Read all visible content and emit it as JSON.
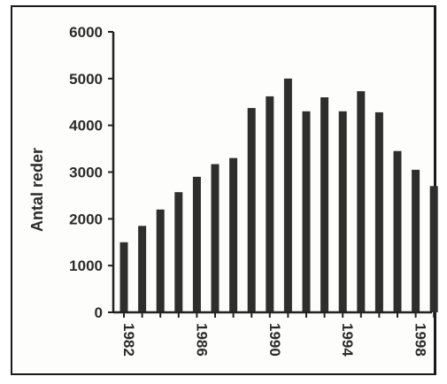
{
  "chart_data": {
    "type": "bar",
    "title": "",
    "xlabel": "",
    "ylabel": "Antal reder",
    "ylim": [
      0,
      6000
    ],
    "yticks": [
      0,
      1000,
      2000,
      3000,
      4000,
      5000,
      6000
    ],
    "categories": [
      "1982",
      "1983",
      "1984",
      "1985",
      "1986",
      "1987",
      "1988",
      "1989",
      "1990",
      "1991",
      "1992",
      "1993",
      "1994",
      "1995",
      "1996",
      "1997",
      "1998",
      "1999"
    ],
    "values": [
      1500,
      1850,
      2200,
      2570,
      2900,
      3170,
      3300,
      4370,
      4620,
      5000,
      4300,
      4600,
      4300,
      4730,
      4280,
      3450,
      3050,
      2700
    ],
    "xtick_labels": [
      "1982",
      "1986",
      "1990",
      "1994",
      "1998"
    ],
    "grid": false,
    "legend": "none",
    "bar_color": "#2e2e2e"
  }
}
